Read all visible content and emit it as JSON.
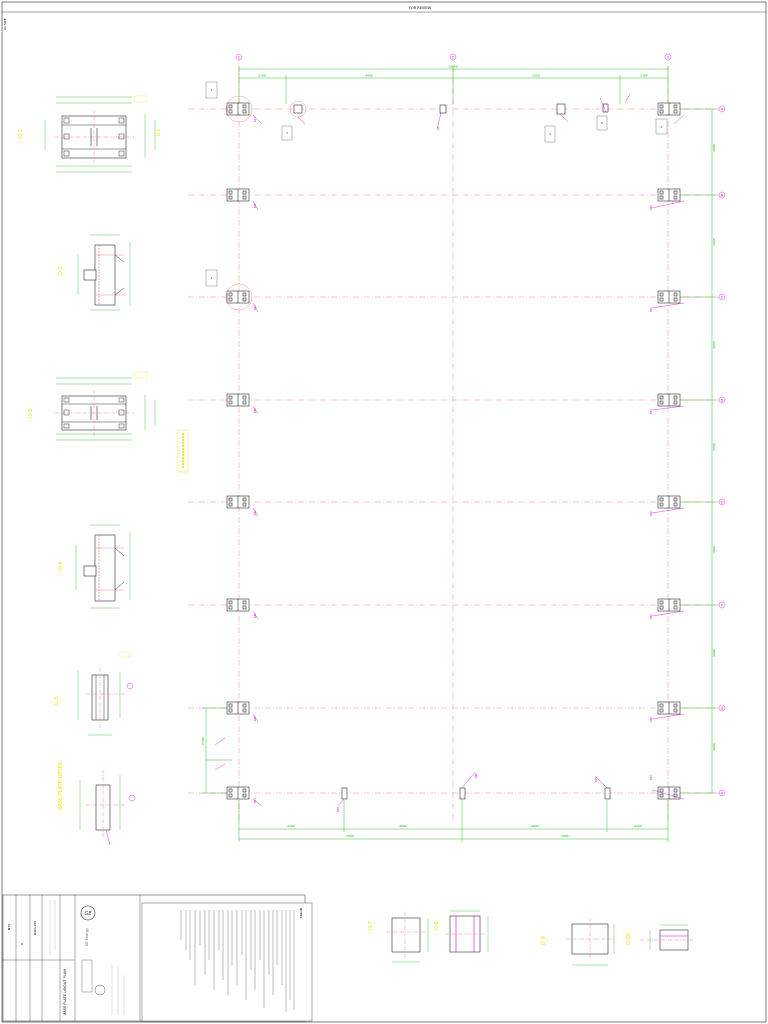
{
  "sheet": {
    "top_ref": "FOR REVIEW",
    "corner_note": "A1 SIZE"
  },
  "colors": {
    "grid": "#ff6b6b",
    "steel": "#000000",
    "dimension": "#00b400",
    "annotation": "#e000e0",
    "title_yellow": "#e6e600",
    "frame": "#333333"
  },
  "plan": {
    "grid_x_labels": [
      "1",
      "2",
      "3"
    ],
    "grid_y_labels": [
      "A",
      "B",
      "C",
      "D",
      "E",
      "F",
      "G",
      "H"
    ],
    "top_dims": [
      "2100",
      "4000",
      "4200",
      "2100"
    ],
    "top_overall": "12400",
    "bottom_dims": [
      "2100",
      "3900",
      "4200",
      "2100"
    ],
    "bottom_overall": [
      "7500",
      "7500"
    ],
    "side_dims": [
      "3000",
      "3000",
      "3000",
      "3000",
      "3000",
      "3000",
      "3000",
      "2500"
    ],
    "section_marks": [
      "1",
      "2",
      "3",
      "4",
      "5",
      "6"
    ]
  },
  "details": {
    "d1_title": "D-1",
    "d2_title": "D-2",
    "d3_title": "D-3",
    "d4_title": "D-4",
    "d5_title": "D-5",
    "d6_title": "D-6",
    "side_title": "BASE PLATE DETAIL"
  },
  "bottom_details": {
    "d7_title": "D-7",
    "d8_title": "D-8",
    "d9_title": "D-9",
    "d10_title": "D-10"
  },
  "title_block": {
    "company": "GE",
    "company_line": "GE Energy",
    "project": "BASE PLATE LAYOUT PLAN",
    "drawing_no": "DWG-001",
    "rev": "0",
    "scale": "NTS"
  },
  "notes": {
    "heading": "NOTES:"
  }
}
